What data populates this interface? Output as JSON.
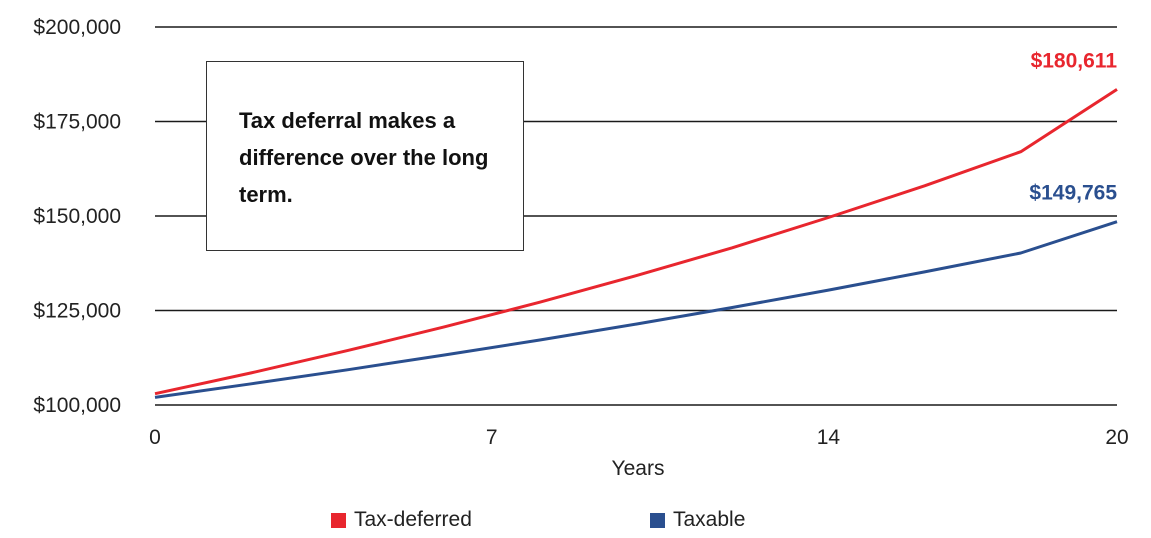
{
  "chart_data": {
    "type": "line",
    "xlabel": "Years",
    "ylabel": "",
    "x_ticks": [
      "0",
      "7",
      "14",
      "20"
    ],
    "xlim": [
      0,
      20
    ],
    "y_ticks": [
      "$100,000",
      "$125,000",
      "$150,000",
      "$175,000",
      "$200,000"
    ],
    "ylim": [
      100000,
      200000
    ],
    "grid": "horizontal",
    "legend_position": "bottom",
    "annotation": "Tax deferral makes a difference over the long term.",
    "series": [
      {
        "name": "Tax-deferred",
        "color": "#e8262e",
        "end_label": "$180,611",
        "x": [
          0,
          2,
          4,
          6,
          8,
          10,
          12,
          14,
          16,
          18,
          20
        ],
        "y": [
          103000,
          108500,
          114400,
          120600,
          127200,
          134200,
          141600,
          149600,
          158000,
          167000,
          183500
        ]
      },
      {
        "name": "Taxable",
        "color": "#2a4f8f",
        "end_label": "$149,765",
        "x": [
          0,
          2,
          4,
          6,
          8,
          10,
          12,
          14,
          16,
          18,
          20
        ],
        "y": [
          102000,
          105600,
          109300,
          113200,
          117200,
          121400,
          125800,
          130400,
          135200,
          140200,
          148500
        ]
      }
    ]
  }
}
